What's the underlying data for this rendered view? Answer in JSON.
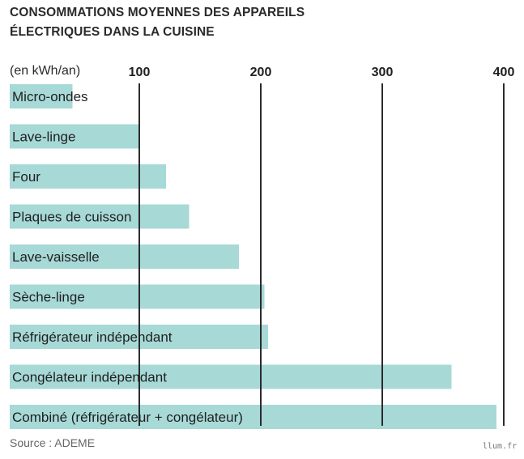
{
  "title_lines": [
    "CONSOMMATIONS MOYENNES DES APPAREILS",
    "ÉLECTRIQUES DANS LA CUISINE"
  ],
  "unit_label": "(en kWh/an)",
  "source": "Source : ADEME",
  "watermark": "llum.fr",
  "colors": {
    "bar": "#a7d9d7",
    "gridline": "#2b2b2b",
    "text": "#1f1f1f"
  },
  "chart_data": {
    "type": "bar",
    "orientation": "horizontal",
    "title": "CONSOMMATIONS MOYENNES DES APPAREILS ÉLECTRIQUES DANS LA CUISINE",
    "xlabel": "(en kWh/an)",
    "ylabel": "",
    "xlim": [
      0,
      400
    ],
    "xticks": [
      100,
      200,
      300,
      400
    ],
    "grid": true,
    "categories": [
      "Micro-ondes",
      "Lave-linge",
      "Four",
      "Plaques de cuisson",
      "Lave-vaisselle",
      "Sèche-linge",
      "Réfrigérateur indépendant",
      "Congélateur indépendant",
      "Combiné (réfrigérateur + congélateur)"
    ],
    "values": [
      45,
      100,
      122,
      141,
      182,
      203,
      206,
      357,
      394
    ]
  }
}
